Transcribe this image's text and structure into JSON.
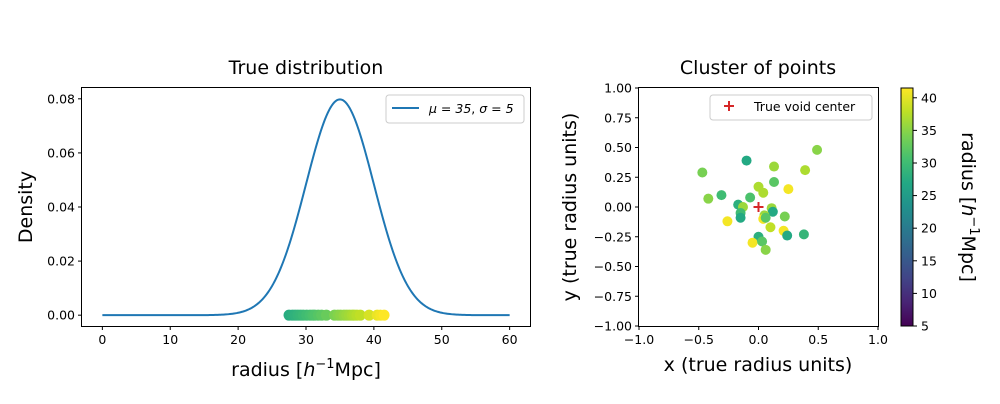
{
  "colorbar": {
    "label": "radius [h⁻¹Mpc]",
    "label_main": "radius [",
    "label_h": "h",
    "label_sup": "−1",
    "label_end": "Mpc]",
    "vmin": 5,
    "vmax": 41.5,
    "ticks": [
      "5",
      "10",
      "15",
      "20",
      "25",
      "30",
      "35",
      "40"
    ],
    "colormap": "viridis"
  },
  "chart_data": [
    {
      "type": "line",
      "title": "True distribution",
      "xlabel": "radius [h⁻¹Mpc]",
      "xlabel_parts": {
        "main": "radius [",
        "h": "h",
        "sup": "−1",
        "end": "Mpc]"
      },
      "ylabel": "Density",
      "xlim": [
        -3,
        63
      ],
      "ylim": [
        -0.004,
        0.084
      ],
      "xticks": [
        "0",
        "10",
        "20",
        "30",
        "40",
        "50",
        "60"
      ],
      "yticks": [
        "0.00",
        "0.02",
        "0.04",
        "0.06",
        "0.08"
      ],
      "line_color": "#1f77b4",
      "series": [
        {
          "name": "μ = 35, σ = 5",
          "mu": 35,
          "sigma": 5,
          "x_range": [
            0,
            60
          ]
        }
      ],
      "legend": {
        "placement": "upper right",
        "mu_label": "μ = 35",
        "sep": ", ",
        "sigma_label": "σ = 5"
      },
      "rug_points": {
        "y": 0.0,
        "x": [
          27.5,
          28.0,
          28.4,
          28.8,
          29.2,
          29.6,
          30.1,
          30.6,
          31.0,
          31.3,
          31.8,
          32.3,
          33.0,
          34.2,
          34.7,
          35.1,
          35.6,
          36.0,
          36.4,
          36.8,
          37.1,
          37.5,
          38.0,
          39.3,
          40.5,
          41.0,
          41.5
        ]
      }
    },
    {
      "type": "scatter",
      "title": "Cluster of points",
      "xlabel": "x (true radius units)",
      "ylabel": "y (true radius units)",
      "xlim": [
        -1.0,
        1.0
      ],
      "ylim": [
        -1.0,
        1.0
      ],
      "xticks": [
        "−1.0",
        "−0.5",
        "0.0",
        "0.5",
        "1.0"
      ],
      "yticks": [
        "−1.00",
        "−0.75",
        "−0.50",
        "−0.25",
        "0.00",
        "0.25",
        "0.50",
        "0.75",
        "1.00"
      ],
      "legend": {
        "placement": "upper right",
        "label": "True void center",
        "marker_color": "#d62728"
      },
      "void_center": [
        0.0,
        0.0
      ],
      "points": [
        {
          "x": -0.47,
          "y": 0.29,
          "r": 34
        },
        {
          "x": -0.1,
          "y": 0.39,
          "r": 27
        },
        {
          "x": 0.13,
          "y": 0.34,
          "r": 36
        },
        {
          "x": 0.49,
          "y": 0.48,
          "r": 35
        },
        {
          "x": 0.39,
          "y": 0.31,
          "r": 37
        },
        {
          "x": -0.42,
          "y": 0.07,
          "r": 35
        },
        {
          "x": -0.31,
          "y": 0.1,
          "r": 30
        },
        {
          "x": 0.0,
          "y": 0.17,
          "r": 37
        },
        {
          "x": 0.13,
          "y": 0.21,
          "r": 32
        },
        {
          "x": 0.25,
          "y": 0.15,
          "r": 41
        },
        {
          "x": -0.07,
          "y": 0.08,
          "r": 31
        },
        {
          "x": 0.04,
          "y": 0.12,
          "r": 37
        },
        {
          "x": -0.17,
          "y": 0.02,
          "r": 28
        },
        {
          "x": -0.13,
          "y": 0.0,
          "r": 36
        },
        {
          "x": -0.15,
          "y": -0.05,
          "r": 30
        },
        {
          "x": -0.15,
          "y": -0.09,
          "r": 27
        },
        {
          "x": -0.26,
          "y": -0.12,
          "r": 41
        },
        {
          "x": 0.11,
          "y": -0.01,
          "r": 36
        },
        {
          "x": 0.12,
          "y": -0.04,
          "r": 27
        },
        {
          "x": 0.05,
          "y": -0.07,
          "r": 36
        },
        {
          "x": 0.04,
          "y": -0.1,
          "r": 41
        },
        {
          "x": 0.06,
          "y": -0.09,
          "r": 32
        },
        {
          "x": 0.22,
          "y": -0.08,
          "r": 34
        },
        {
          "x": 0.1,
          "y": -0.17,
          "r": 38
        },
        {
          "x": 0.21,
          "y": -0.2,
          "r": 41
        },
        {
          "x": 0.24,
          "y": -0.24,
          "r": 27
        },
        {
          "x": 0.38,
          "y": -0.23,
          "r": 29
        },
        {
          "x": 0.0,
          "y": -0.25,
          "r": 28
        },
        {
          "x": -0.05,
          "y": -0.3,
          "r": 41
        },
        {
          "x": 0.03,
          "y": -0.29,
          "r": 32
        },
        {
          "x": 0.06,
          "y": -0.36,
          "r": 35
        }
      ]
    }
  ]
}
